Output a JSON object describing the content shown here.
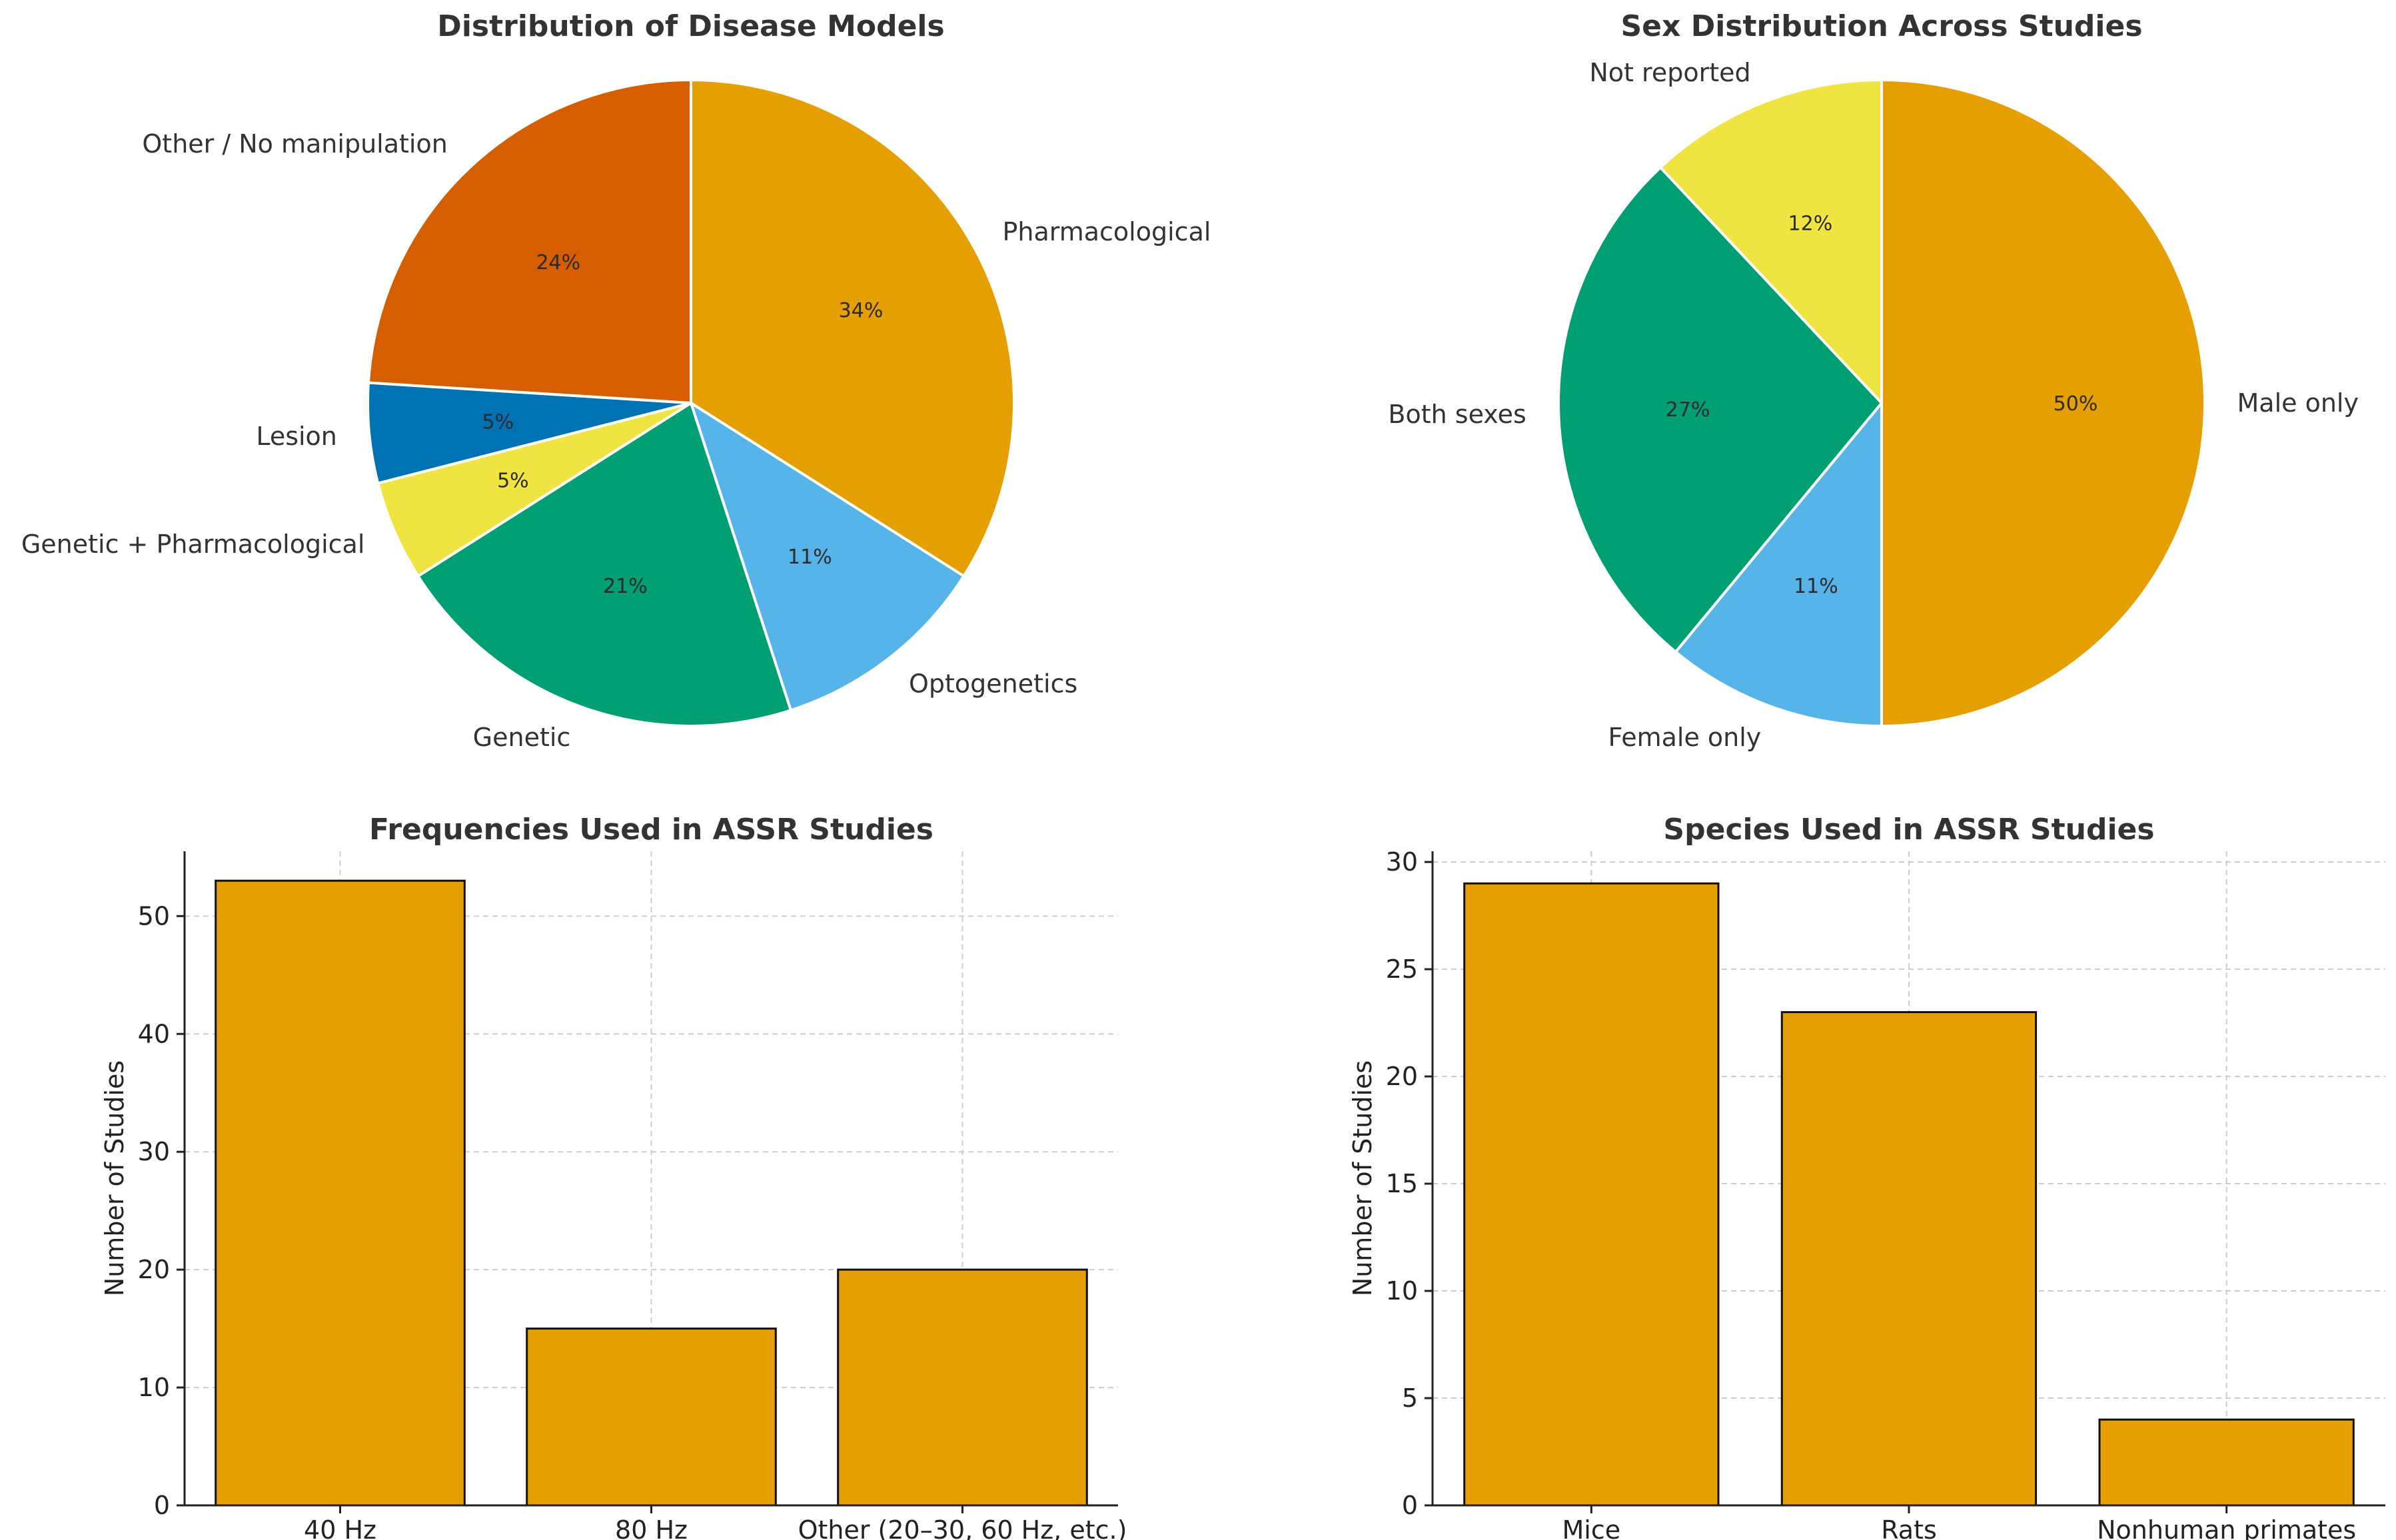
{
  "chart_data": [
    {
      "type": "pie",
      "title": "Distribution of Disease Models",
      "slices": [
        {
          "label": "Pharmacological",
          "value": 34,
          "pct_label": "34%",
          "color": "#E69F00"
        },
        {
          "label": "Optogenetics",
          "value": 11,
          "pct_label": "11%",
          "color": "#56B4E9"
        },
        {
          "label": "Genetic",
          "value": 21,
          "pct_label": "21%",
          "color": "#009E73"
        },
        {
          "label": "Genetic + Pharmacological",
          "value": 5,
          "pct_label": "5%",
          "color": "#F0E442"
        },
        {
          "label": "Lesion",
          "value": 5,
          "pct_label": "5%",
          "color": "#0072B2"
        },
        {
          "label": "Other / No manipulation",
          "value": 24,
          "pct_label": "24%",
          "color": "#D55E00"
        }
      ]
    },
    {
      "type": "pie",
      "title": "Sex Distribution Across Studies",
      "slices": [
        {
          "label": "Male only",
          "value": 50,
          "pct_label": "50%",
          "color": "#E69F00"
        },
        {
          "label": "Female only",
          "value": 11,
          "pct_label": "11%",
          "color": "#56B4E9"
        },
        {
          "label": "Both sexes",
          "value": 27,
          "pct_label": "27%",
          "color": "#009E73"
        },
        {
          "label": "Not reported",
          "value": 12,
          "pct_label": "12%",
          "color": "#F0E442"
        }
      ]
    },
    {
      "type": "bar",
      "title": "Frequencies Used in ASSR Studies",
      "categories": [
        "40 Hz",
        "80 Hz",
        "Other (20–30, 60 Hz, etc.)"
      ],
      "values": [
        53,
        15,
        20
      ],
      "ylabel": "Number of Studies",
      "xlabel": "",
      "ylim": [
        0,
        55.5
      ],
      "yticks": [
        0,
        10,
        20,
        30,
        40,
        50
      ],
      "bar_color": "#E69F00",
      "grid": true
    },
    {
      "type": "bar",
      "title": "Species Used in ASSR Studies",
      "categories": [
        "Mice",
        "Rats",
        "Nonhuman primates"
      ],
      "values": [
        29,
        23,
        4
      ],
      "ylabel": "Number of Studies",
      "xlabel": "",
      "ylim": [
        0,
        30.5
      ],
      "yticks": [
        0,
        5,
        10,
        15,
        20,
        25,
        30
      ],
      "bar_color": "#E69F00",
      "grid": true
    }
  ]
}
